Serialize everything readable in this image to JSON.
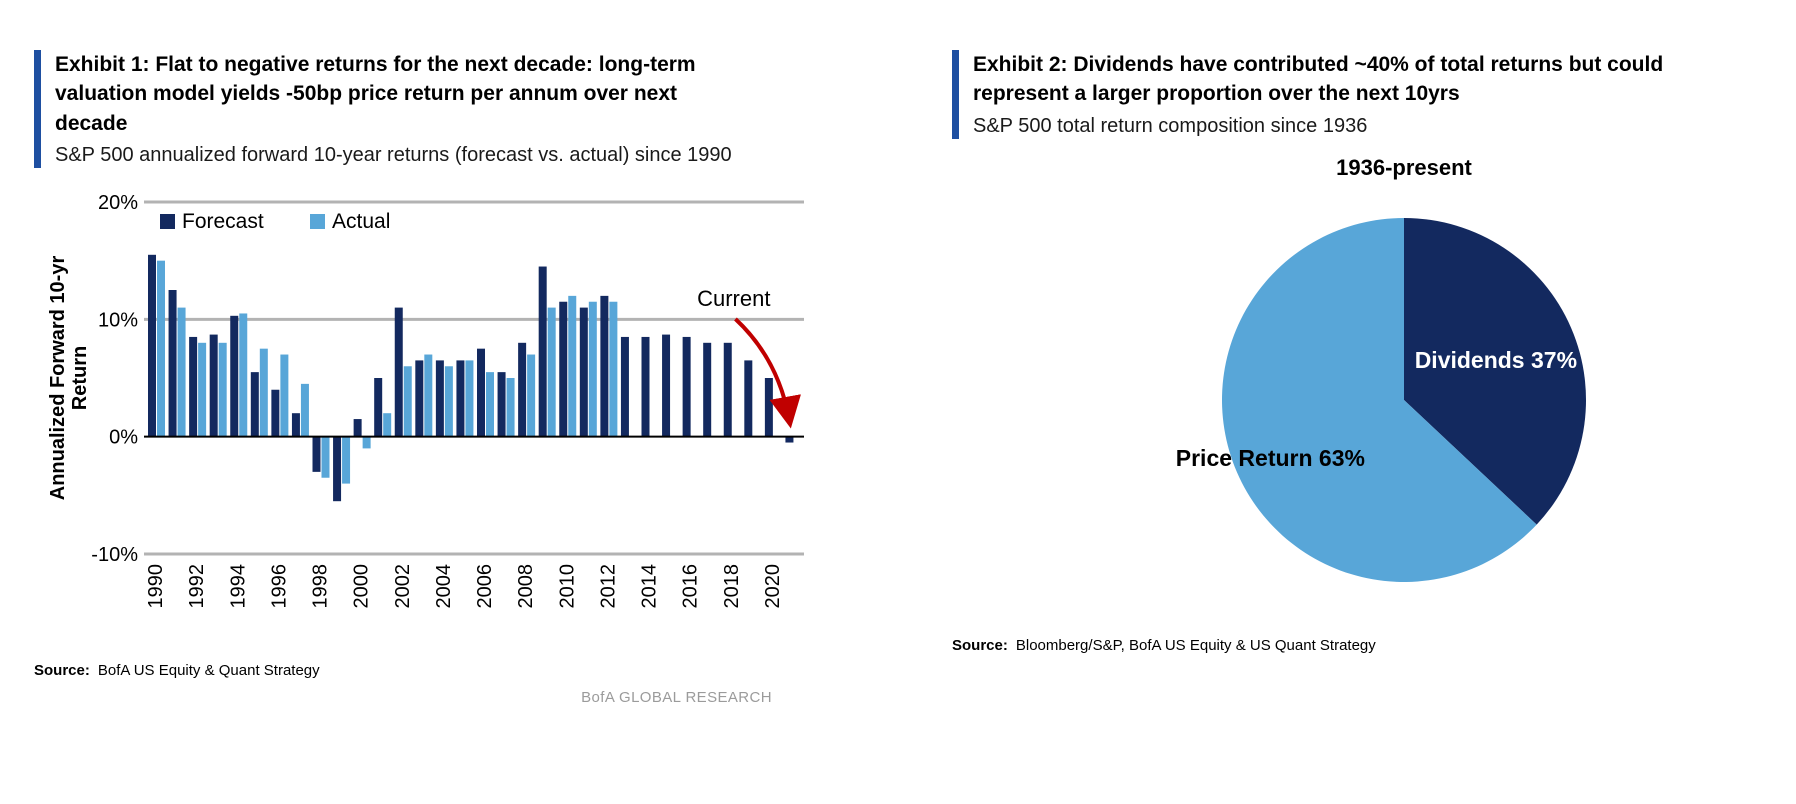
{
  "exhibit1": {
    "title": "Exhibit 1: Flat to negative returns for the next decade: long-term valuation model yields -50bp price return per annum over next decade",
    "subtitle": "S&P 500 annualized forward 10-year returns (forecast vs. actual) since 1990",
    "source_label": "Source:",
    "source": "BofA US Equity & Quant Strategy",
    "brand": "BofA GLOBAL RESEARCH"
  },
  "exhibit2": {
    "title": "Exhibit 2: Dividends have contributed ~40% of total returns but could represent a larger proportion over the next 10yrs",
    "subtitle": "S&P 500 total return composition since 1936",
    "pie_title": "1936-present",
    "source_label": "Source:",
    "source": "Bloomberg/S&P, BofA US Equity & US Quant Strategy"
  },
  "colors": {
    "forecast_navy": "#13295f",
    "actual_blue": "#58a6d8",
    "accent_bar_blue": "#1e4fa1",
    "arrow_red": "#c00000",
    "grid_gray": "#b3b3b3",
    "brand_gray": "#9b9b9b"
  },
  "chart_data": [
    {
      "type": "bar",
      "title": "S&P 500 annualized forward 10-year returns (forecast vs. actual) since 1990",
      "ylabel": "Annualized Forward 10-yr Return",
      "ylabel_lines": [
        "Annualized Forward 10-yr",
        "Return"
      ],
      "xlabel": "",
      "ylim": [
        -10,
        20
      ],
      "yticks": [
        20,
        10,
        0,
        -10
      ],
      "xtick_step": 2,
      "grid_color": "#b3b3b3",
      "legend_position": "top-left-inside",
      "x": [
        1990,
        1991,
        1992,
        1993,
        1994,
        1995,
        1996,
        1997,
        1998,
        1999,
        2000,
        2001,
        2002,
        2003,
        2004,
        2005,
        2006,
        2007,
        2008,
        2009,
        2010,
        2011,
        2012,
        2013,
        2014,
        2015,
        2016,
        2017,
        2018,
        2019,
        2020,
        2021
      ],
      "series": [
        {
          "name": "Forecast",
          "color": "#13295f",
          "values": [
            15.5,
            12.5,
            8.5,
            8.7,
            10.3,
            5.5,
            4.0,
            2.0,
            -3.0,
            -5.5,
            1.5,
            5.0,
            11.0,
            6.5,
            6.5,
            6.5,
            7.5,
            5.5,
            8.0,
            14.5,
            11.5,
            11.0,
            12.0,
            8.5,
            8.5,
            8.7,
            8.5,
            8.0,
            8.0,
            6.5,
            5.0,
            -0.5
          ]
        },
        {
          "name": "Actual",
          "color": "#58a6d8",
          "values": [
            15.0,
            11.0,
            8.0,
            8.0,
            10.5,
            7.5,
            7.0,
            4.5,
            -3.5,
            -4.0,
            -1.0,
            2.0,
            6.0,
            7.0,
            6.0,
            6.5,
            5.5,
            5.0,
            7.0,
            11.0,
            12.0,
            11.5,
            11.5,
            null,
            null,
            null,
            null,
            null,
            null,
            null,
            null,
            null
          ]
        }
      ],
      "annotation": {
        "text": "Current",
        "target_year": 2021,
        "color": "#c00000"
      }
    },
    {
      "type": "pie",
      "title": "1936-present",
      "slices": [
        {
          "name": "Dividends",
          "value": 37,
          "color": "#13295f",
          "label_color": "#ffffff",
          "label_radius": 0.55
        },
        {
          "name": "Price Return",
          "value": 63,
          "color": "#58a6d8",
          "label_color": "#000000",
          "label_radius": 0.8
        }
      ],
      "start_angle_deg": -90,
      "direction": "clockwise",
      "label_format": "{name} {value}%"
    }
  ]
}
